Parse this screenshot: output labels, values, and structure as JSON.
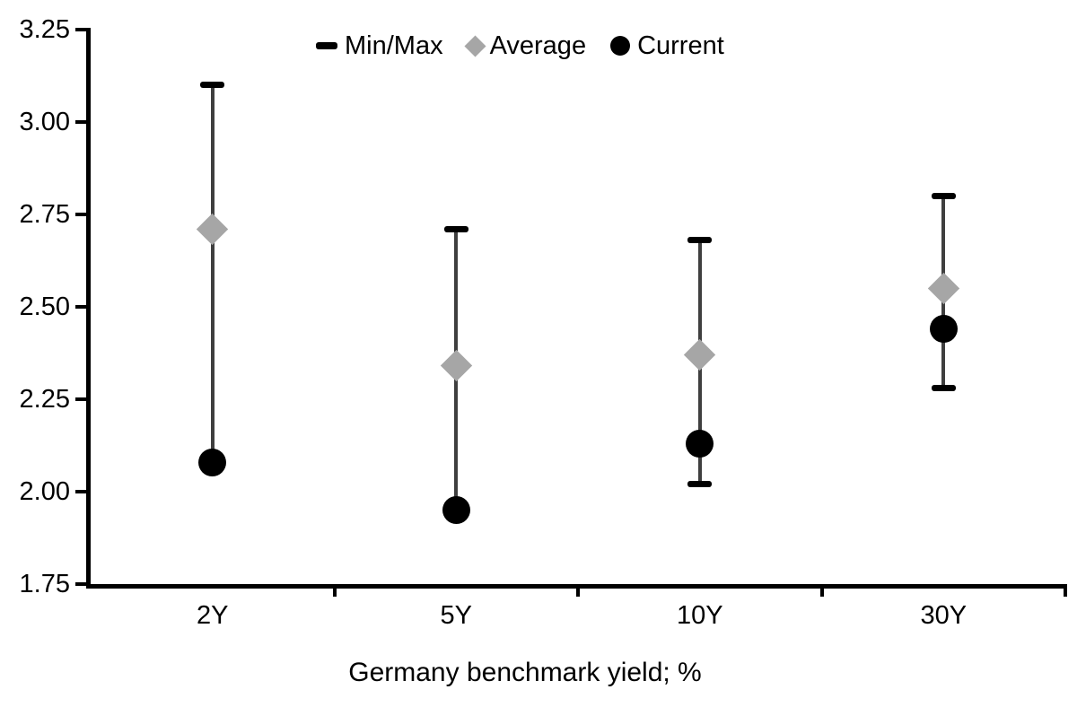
{
  "chart_data": {
    "type": "scatter (min/max range bars with average and current markers)",
    "xlabel": "Germany benchmark yield; %",
    "categories": [
      "2Y",
      "5Y",
      "10Y",
      "30Y"
    ],
    "ylim": [
      1.75,
      3.25
    ],
    "ytick_step": 0.25,
    "ytick_labels": [
      "3.25",
      "3.00",
      "2.75",
      "2.50",
      "2.25",
      "2.00",
      "1.75"
    ],
    "grid": false,
    "legend_position": "top-center",
    "series": [
      {
        "name": "Min/Max",
        "min": [
          2.08,
          1.95,
          2.02,
          2.28
        ],
        "max": [
          3.1,
          2.71,
          2.68,
          2.8
        ]
      },
      {
        "name": "Average",
        "values": [
          2.71,
          2.34,
          2.37,
          2.55
        ]
      },
      {
        "name": "Current",
        "values": [
          2.08,
          1.95,
          2.13,
          2.44
        ]
      }
    ],
    "legend": [
      {
        "label": "Min/Max",
        "marker": "dash",
        "color": "#000000"
      },
      {
        "label": "Average",
        "marker": "diamond",
        "color": "#a6a6a6"
      },
      {
        "label": "Current",
        "marker": "circle",
        "color": "#000000"
      }
    ],
    "colors": {
      "background": "#ffffff",
      "axis": "#000000",
      "text": "#000000",
      "range_line": "#3f3f3f",
      "cap": "#000000",
      "average": "#a6a6a6",
      "current": "#000000"
    }
  }
}
